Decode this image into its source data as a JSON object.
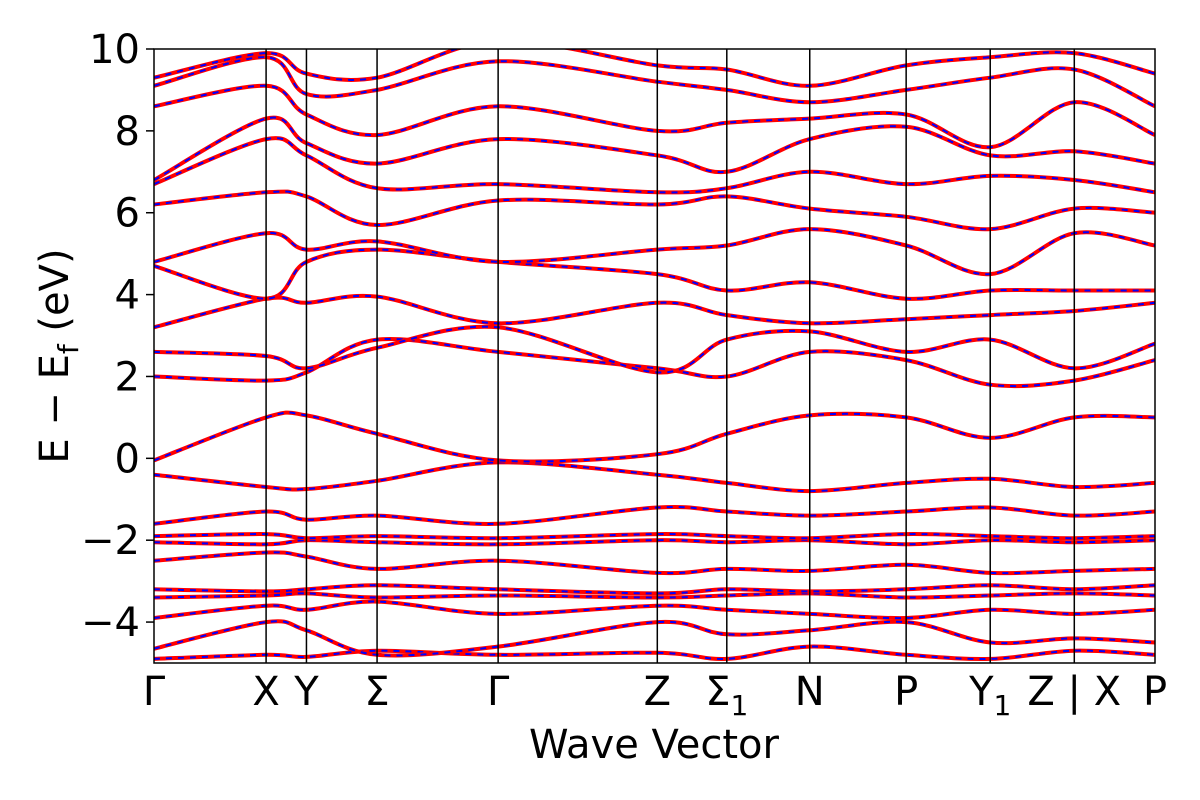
{
  "chart_data": {
    "type": "line",
    "title": "",
    "xlabel": "Wave Vector",
    "ylabel_parts": {
      "main": "E − E",
      "sub": "f",
      "unit": " (eV)"
    },
    "ylim": [
      -5,
      10
    ],
    "yticks": [
      "−4",
      "−2",
      "0",
      "2",
      "4",
      "6",
      "8",
      "10"
    ],
    "ytick_values": [
      -4,
      -2,
      0,
      2,
      4,
      6,
      8,
      10
    ],
    "kpath": [
      {
        "label": "Γ",
        "sub": "",
        "k": 0.0
      },
      {
        "label": "X",
        "sub": "",
        "k": 1.0
      },
      {
        "label": "Y",
        "sub": "",
        "k": 1.36
      },
      {
        "label": "Σ",
        "sub": "",
        "k": 1.99
      },
      {
        "label": "Γ",
        "sub": "",
        "k": 3.07
      },
      {
        "label": "Z",
        "sub": "",
        "k": 4.49
      },
      {
        "label": "Σ",
        "sub": "1",
        "k": 5.11
      },
      {
        "label": "N",
        "sub": "",
        "k": 5.85
      },
      {
        "label": "P",
        "sub": "",
        "k": 6.71
      },
      {
        "label": "Y",
        "sub": "1",
        "k": 7.46
      },
      {
        "label": "Z | X",
        "sub": "",
        "k": 8.21
      },
      {
        "label": "P",
        "sub": "",
        "k": 8.93
      }
    ],
    "series": [
      {
        "color": "#ff0000",
        "style": "solid"
      },
      {
        "color": "#0000ff",
        "style": "dashed"
      }
    ],
    "bands": [
      [
        -4.9,
        -4.8,
        -4.85,
        -4.7,
        -4.8,
        -4.75,
        -4.9,
        -4.6,
        -4.8,
        -4.9,
        -4.7,
        -4.8
      ],
      [
        -4.65,
        -4.0,
        -4.2,
        -4.8,
        -4.6,
        -4.0,
        -4.3,
        -4.2,
        -4.0,
        -4.5,
        -4.4,
        -4.5
      ],
      [
        -3.9,
        -3.6,
        -3.7,
        -3.5,
        -3.8,
        -3.6,
        -3.7,
        -3.8,
        -3.9,
        -3.7,
        -3.8,
        -3.7
      ],
      [
        -3.4,
        -3.35,
        -3.3,
        -3.4,
        -3.35,
        -3.4,
        -3.35,
        -3.3,
        -3.4,
        -3.35,
        -3.3,
        -3.35
      ],
      [
        -3.2,
        -3.25,
        -3.2,
        -3.1,
        -3.2,
        -3.3,
        -3.2,
        -3.25,
        -3.2,
        -3.1,
        -3.2,
        -3.1
      ],
      [
        -2.5,
        -2.3,
        -2.4,
        -2.7,
        -2.5,
        -2.8,
        -2.7,
        -2.75,
        -2.6,
        -2.8,
        -2.75,
        -2.7
      ],
      [
        -2.05,
        -2.1,
        -2.0,
        -2.05,
        -2.1,
        -2.0,
        -2.05,
        -2.0,
        -2.1,
        -2.0,
        -2.05,
        -2.0
      ],
      [
        -1.9,
        -1.85,
        -1.95,
        -1.9,
        -1.95,
        -1.85,
        -1.9,
        -1.95,
        -1.85,
        -1.9,
        -1.95,
        -1.9
      ],
      [
        -1.6,
        -1.3,
        -1.5,
        -1.4,
        -1.6,
        -1.2,
        -1.3,
        -1.4,
        -1.3,
        -1.2,
        -1.4,
        -1.3
      ],
      [
        -0.4,
        -0.7,
        -0.75,
        -0.55,
        -0.1,
        -0.4,
        -0.6,
        -0.8,
        -0.6,
        -0.5,
        -0.7,
        -0.6
      ],
      [
        -0.05,
        1.0,
        1.05,
        0.6,
        -0.05,
        0.1,
        0.6,
        1.05,
        1.0,
        0.5,
        1.0,
        1.0
      ],
      [
        2.0,
        1.9,
        2.1,
        2.9,
        2.6,
        2.2,
        2.0,
        2.6,
        2.4,
        1.8,
        1.9,
        2.4
      ],
      [
        2.6,
        2.5,
        2.2,
        2.7,
        3.2,
        2.1,
        2.9,
        3.1,
        2.6,
        2.9,
        2.2,
        2.8
      ],
      [
        3.2,
        3.9,
        3.8,
        3.95,
        3.3,
        3.8,
        3.5,
        3.3,
        3.4,
        3.5,
        3.6,
        3.8
      ],
      [
        4.7,
        3.9,
        4.8,
        5.1,
        4.8,
        4.5,
        4.1,
        4.3,
        3.9,
        4.1,
        4.1,
        4.1
      ],
      [
        4.8,
        5.5,
        5.1,
        5.3,
        4.8,
        5.1,
        5.2,
        5.6,
        5.2,
        4.5,
        5.5,
        5.2
      ],
      [
        6.2,
        6.5,
        6.4,
        5.7,
        6.3,
        6.2,
        6.4,
        6.1,
        5.9,
        5.6,
        6.1,
        6.0
      ],
      [
        6.7,
        7.8,
        7.4,
        6.6,
        6.7,
        6.5,
        6.6,
        7.0,
        6.7,
        6.9,
        6.8,
        6.5
      ],
      [
        6.8,
        8.3,
        7.7,
        7.2,
        7.8,
        7.4,
        7.0,
        7.8,
        8.1,
        7.4,
        7.5,
        7.2
      ],
      [
        8.6,
        9.1,
        8.4,
        7.9,
        8.6,
        8.0,
        8.2,
        8.3,
        8.4,
        7.6,
        8.7,
        7.9
      ],
      [
        9.1,
        9.8,
        8.9,
        9.0,
        9.7,
        9.2,
        9.0,
        8.7,
        9.0,
        9.3,
        9.5,
        8.6
      ],
      [
        9.3,
        9.9,
        9.4,
        9.3,
        10.2,
        9.6,
        9.5,
        9.1,
        9.6,
        9.8,
        9.9,
        9.4
      ]
    ]
  }
}
